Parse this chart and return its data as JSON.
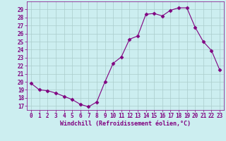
{
  "x": [
    0,
    1,
    2,
    3,
    4,
    5,
    6,
    7,
    8,
    9,
    10,
    11,
    12,
    13,
    14,
    15,
    16,
    17,
    18,
    19,
    20,
    21,
    22,
    23
  ],
  "y": [
    19.8,
    19.0,
    18.9,
    18.6,
    18.2,
    17.8,
    17.2,
    16.9,
    17.5,
    20.0,
    22.3,
    23.1,
    25.3,
    25.7,
    28.4,
    28.5,
    28.2,
    28.9,
    29.2,
    29.2,
    26.8,
    25.0,
    23.9,
    21.5
  ],
  "line_color": "#800080",
  "marker": "D",
  "marker_size": 2.5,
  "bg_color": "#cceef0",
  "grid_color": "#aacccc",
  "xlabel": "Windchill (Refroidissement éolien,°C)",
  "xlim": [
    -0.5,
    23.5
  ],
  "ylim": [
    16.5,
    30.0
  ],
  "yticks": [
    17,
    18,
    19,
    20,
    21,
    22,
    23,
    24,
    25,
    26,
    27,
    28,
    29
  ],
  "xticks": [
    0,
    1,
    2,
    3,
    4,
    5,
    6,
    7,
    8,
    9,
    10,
    11,
    12,
    13,
    14,
    15,
    16,
    17,
    18,
    19,
    20,
    21,
    22,
    23
  ],
  "tick_fontsize": 5.5,
  "xlabel_fontsize": 6.0
}
